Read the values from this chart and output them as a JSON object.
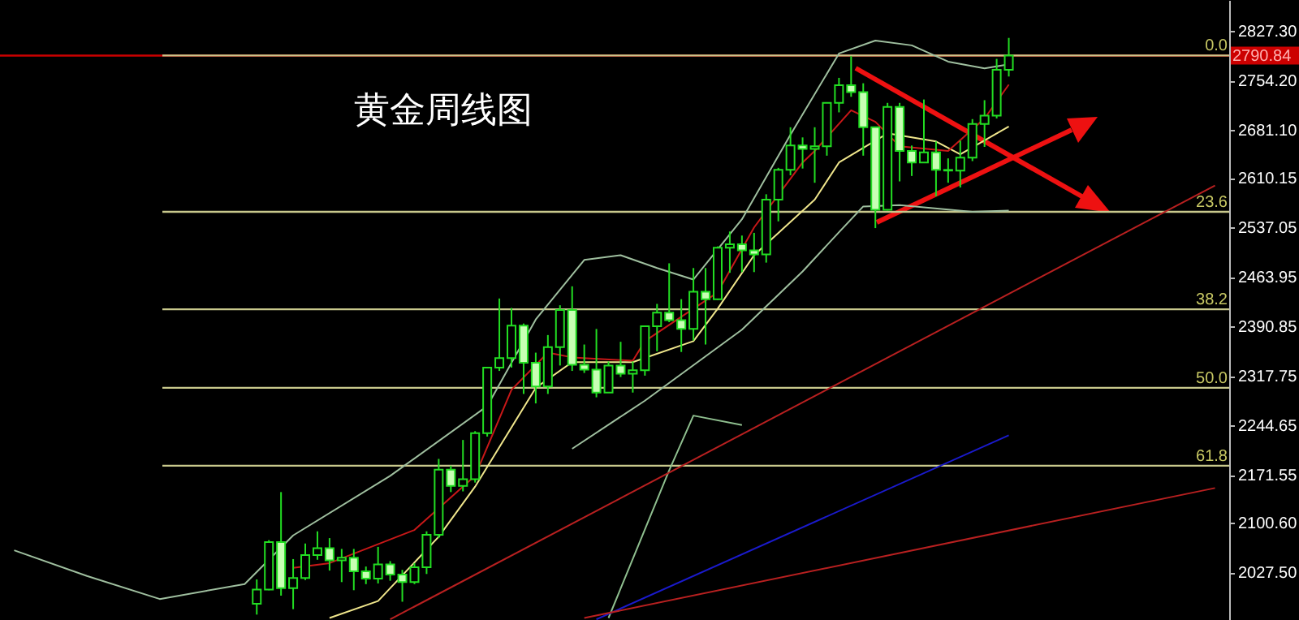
{
  "chart_data": {
    "type": "candlestick",
    "title": "黄金周线图",
    "tick_labels": "y",
    "categories": [
      null,
      null,
      null,
      null,
      null,
      null,
      null,
      null,
      null,
      null,
      null,
      null,
      null,
      null,
      null,
      null,
      null,
      null,
      null,
      null,
      null,
      null,
      null,
      null,
      null,
      null,
      null,
      null,
      null,
      null,
      null,
      null,
      null,
      null,
      null,
      null,
      null,
      null,
      null,
      null,
      null,
      null,
      null,
      null,
      null,
      null,
      null,
      null,
      null,
      null,
      null,
      null,
      null,
      null,
      null,
      null,
      null,
      null,
      null,
      null,
      null,
      null,
      null,
      null,
      null,
      null,
      null,
      null,
      null,
      null,
      null,
      null,
      null,
      null,
      null,
      null,
      null,
      null,
      null,
      null,
      null,
      null,
      null,
      null,
      null,
      null,
      null,
      null,
      null,
      null,
      null,
      null,
      null,
      null,
      null,
      null,
      null,
      null,
      null,
      null
    ],
    "ohlc": [
      null,
      null,
      null,
      null,
      null,
      null,
      null,
      null,
      null,
      null,
      null,
      null,
      null,
      null,
      null,
      null,
      null,
      null,
      null,
      null,
      [
        1981,
        2017,
        1965,
        2002
      ],
      [
        2002,
        2075,
        2001,
        2072
      ],
      [
        2072,
        2146,
        1993,
        2004
      ],
      [
        2004,
        2047,
        1973,
        2019
      ],
      [
        2019,
        2070,
        2016,
        2053
      ],
      [
        2053,
        2088,
        2046,
        2063
      ],
      [
        2063,
        2078,
        2030,
        2045
      ],
      [
        2045,
        2062,
        2013,
        2049
      ],
      [
        2049,
        2062,
        2001,
        2029
      ],
      [
        2029,
        2036,
        2010,
        2018
      ],
      [
        2018,
        2065,
        2011,
        2039
      ],
      [
        2039,
        2044,
        2015,
        2024
      ],
      [
        2024,
        2031,
        1984,
        2013
      ],
      [
        2013,
        2041,
        2010,
        2035
      ],
      [
        2035,
        2088,
        2025,
        2083
      ],
      [
        2083,
        2195,
        2078,
        2179
      ],
      [
        2179,
        2185,
        2146,
        2155
      ],
      [
        2155,
        2223,
        2147,
        2165
      ],
      [
        2165,
        2236,
        2160,
        2233
      ],
      [
        2233,
        2330,
        2228,
        2330
      ],
      [
        2330,
        2432,
        2325,
        2344
      ],
      [
        2344,
        2418,
        2330,
        2392
      ],
      [
        2392,
        2395,
        2291,
        2337
      ],
      [
        2337,
        2352,
        2277,
        2302
      ],
      [
        2302,
        2378,
        2291,
        2360
      ],
      [
        2360,
        2422,
        2333,
        2415
      ],
      [
        2415,
        2450,
        2325,
        2334
      ],
      [
        2334,
        2364,
        2322,
        2327
      ],
      [
        2327,
        2387,
        2286,
        2293
      ],
      [
        2293,
        2339,
        2293,
        2333
      ],
      [
        2333,
        2368,
        2316,
        2321
      ],
      [
        2321,
        2339,
        2293,
        2326
      ],
      [
        2326,
        2392,
        2318,
        2391
      ],
      [
        2391,
        2424,
        2354,
        2411
      ],
      [
        2411,
        2484,
        2397,
        2400
      ],
      [
        2400,
        2431,
        2353,
        2387
      ],
      [
        2387,
        2477,
        2370,
        2442
      ],
      [
        2442,
        2477,
        2364,
        2431
      ],
      [
        2431,
        2509,
        2430,
        2507
      ],
      [
        2507,
        2531,
        2470,
        2512
      ],
      [
        2512,
        2525,
        2471,
        2503
      ],
      [
        2503,
        2529,
        2471,
        2497
      ],
      [
        2497,
        2586,
        2485,
        2578
      ],
      [
        2578,
        2625,
        2546,
        2622
      ],
      [
        2622,
        2685,
        2614,
        2658
      ],
      [
        2658,
        2670,
        2624,
        2653
      ],
      [
        2653,
        2685,
        2603,
        2657
      ],
      [
        2657,
        2722,
        2643,
        2721
      ],
      [
        2721,
        2758,
        2707,
        2747
      ],
      [
        2747,
        2790,
        2730,
        2737
      ],
      [
        2737,
        2750,
        2643,
        2685
      ],
      [
        2685,
        2686,
        2536,
        2563
      ],
      [
        2563,
        2721,
        2562,
        2715
      ],
      [
        2715,
        2721,
        2605,
        2650
      ],
      [
        2650,
        2658,
        2613,
        2633
      ],
      [
        2633,
        2726,
        2632,
        2648
      ],
      [
        2648,
        2664,
        2583,
        2622
      ],
      [
        2622,
        2639,
        2603,
        2621
      ],
      [
        2621,
        2665,
        2596,
        2640
      ],
      [
        2640,
        2697,
        2635,
        2690
      ],
      [
        2690,
        2725,
        2656,
        2702
      ],
      [
        2702,
        2786,
        2698,
        2770
      ],
      [
        2770,
        2817,
        2760,
        2790.84
      ],
      null,
      null,
      null,
      null,
      null,
      null,
      null,
      null,
      null,
      null,
      null,
      null,
      null,
      null,
      null,
      null,
      null
    ],
    "ylim": [
      1957,
      2873
    ],
    "yticks": [
      {
        "value": 2027.5,
        "label": "2027.50"
      },
      {
        "value": 2100.6,
        "label": "2100.60"
      },
      {
        "value": 2171.55,
        "label": "2171.55"
      },
      {
        "value": 2244.65,
        "label": "2244.65"
      },
      {
        "value": 2317.75,
        "label": "2317.75"
      },
      {
        "value": 2390.85,
        "label": "2390.85"
      },
      {
        "value": 2463.95,
        "label": "2463.95"
      },
      {
        "value": 2537.05,
        "label": "2537.05"
      },
      {
        "value": 2610.15,
        "label": "2610.15"
      },
      {
        "value": 2681.1,
        "label": "2681.10"
      },
      {
        "value": 2754.2,
        "label": "2754.20"
      },
      {
        "value": 2827.3,
        "label": "2827.30"
      }
    ],
    "series": [
      {
        "type": "line",
        "color": "#9fbf9f",
        "values": [
          2060,
          null,
          null,
          null,
          null,
          null,
          2022,
          null,
          null,
          null,
          null,
          null,
          1988,
          null,
          null,
          null,
          null,
          null,
          null,
          2010,
          null,
          null,
          null,
          2082,
          null,
          null,
          null,
          null,
          null,
          null,
          null,
          2170,
          null,
          null,
          null,
          null,
          null,
          null,
          null,
          2273,
          null,
          null,
          null,
          2401,
          null,
          null,
          null,
          2489,
          null,
          null,
          2496,
          null,
          null,
          2477,
          null,
          null,
          2460,
          null,
          null,
          null,
          2549,
          null,
          null,
          null,
          2674,
          null,
          null,
          null,
          2794,
          null,
          null,
          2813,
          null,
          null,
          2806,
          null,
          null,
          2782,
          null,
          null,
          2772,
          null,
          2778,
          null,
          null,
          null,
          null,
          null,
          null,
          null,
          null,
          null,
          null,
          null,
          null,
          null,
          null,
          null,
          null,
          null
        ]
      },
      {
        "type": "line",
        "color": "#9fbf9f",
        "values": [
          null,
          null,
          null,
          null,
          null,
          null,
          null,
          null,
          null,
          null,
          null,
          null,
          null,
          null,
          null,
          null,
          null,
          null,
          null,
          null,
          null,
          null,
          null,
          null,
          null,
          null,
          null,
          null,
          null,
          null,
          null,
          null,
          null,
          null,
          null,
          null,
          null,
          null,
          null,
          null,
          null,
          null,
          null,
          null,
          null,
          null,
          2210,
          null,
          null,
          null,
          null,
          null,
          2281,
          null,
          null,
          null,
          null,
          null,
          null,
          null,
          2386,
          null,
          null,
          null,
          null,
          2472,
          null,
          null,
          2530,
          null,
          2568,
          null,
          null,
          2570,
          null,
          null,
          null,
          null,
          null,
          2560,
          null,
          null,
          2562,
          null,
          null,
          null,
          null,
          null,
          null,
          null,
          null,
          null,
          null,
          null,
          null,
          null,
          null,
          null,
          null,
          null
        ]
      },
      {
        "type": "line",
        "color": "#8fbf8f",
        "values": [
          null,
          null,
          null,
          null,
          null,
          null,
          null,
          null,
          null,
          null,
          null,
          null,
          null,
          null,
          null,
          null,
          null,
          null,
          null,
          null,
          null,
          null,
          null,
          null,
          null,
          null,
          null,
          null,
          null,
          null,
          null,
          null,
          null,
          null,
          null,
          null,
          null,
          null,
          null,
          null,
          null,
          null,
          null,
          null,
          null,
          null,
          null,
          null,
          null,
          1960,
          null,
          null,
          null,
          null,
          2178,
          null,
          2259,
          null,
          null,
          null,
          2245,
          null,
          null,
          null,
          null,
          null,
          null,
          null,
          null,
          null,
          null,
          null,
          null,
          null,
          null,
          null,
          null,
          null,
          null,
          null,
          null,
          null,
          null,
          null,
          null,
          null,
          null,
          null,
          null,
          null,
          null,
          null,
          null,
          null,
          null,
          null,
          null,
          null,
          null,
          null
        ]
      },
      {
        "type": "line",
        "color": "#f0e68c",
        "values": [
          null,
          null,
          null,
          null,
          null,
          null,
          null,
          null,
          null,
          null,
          null,
          null,
          null,
          null,
          null,
          null,
          null,
          null,
          null,
          null,
          null,
          null,
          null,
          null,
          null,
          null,
          1960,
          null,
          null,
          null,
          1985,
          null,
          null,
          null,
          null,
          2080,
          null,
          null,
          2154,
          null,
          null,
          null,
          null,
          2300,
          null,
          null,
          2338,
          null,
          null,
          null,
          null,
          2338,
          null,
          null,
          null,
          null,
          2369,
          null,
          2417,
          null,
          null,
          2496,
          null,
          null,
          null,
          null,
          2578,
          null,
          2633,
          null,
          null,
          null,
          2676,
          null,
          null,
          null,
          2664,
          null,
          2645,
          null,
          null,
          null,
          2686,
          null,
          null,
          null,
          null,
          null,
          null,
          null,
          null,
          null,
          null,
          null,
          null,
          null,
          null,
          null,
          null,
          null
        ]
      },
      {
        "type": "line",
        "color": "#c81818",
        "values": [
          null,
          null,
          null,
          null,
          null,
          null,
          null,
          null,
          null,
          null,
          null,
          null,
          null,
          null,
          null,
          null,
          null,
          null,
          null,
          null,
          null,
          null,
          null,
          2034,
          null,
          null,
          2041,
          null,
          null,
          null,
          null,
          null,
          null,
          2090,
          null,
          null,
          null,
          null,
          2170,
          null,
          null,
          2297,
          null,
          null,
          2352,
          null,
          2345,
          null,
          null,
          null,
          null,
          2340,
          2369,
          null,
          null,
          null,
          null,
          null,
          2441,
          null,
          null,
          2537,
          null,
          null,
          null,
          2633,
          2650,
          null,
          null,
          2710,
          null,
          2693,
          null,
          2657,
          null,
          null,
          null,
          2650,
          null,
          null,
          2698,
          null,
          2748,
          null,
          null,
          null,
          null,
          null,
          null,
          null,
          null,
          null,
          null,
          null,
          null,
          null,
          null,
          null,
          null,
          null
        ]
      },
      {
        "type": "line",
        "color": "#1a1acc",
        "values": [
          null,
          null,
          null,
          null,
          null,
          null,
          null,
          null,
          null,
          null,
          null,
          null,
          null,
          null,
          null,
          null,
          null,
          null,
          null,
          null,
          null,
          null,
          null,
          null,
          null,
          null,
          null,
          null,
          null,
          null,
          null,
          null,
          null,
          null,
          null,
          null,
          null,
          null,
          null,
          null,
          null,
          null,
          null,
          null,
          null,
          null,
          null,
          null,
          1958,
          null,
          null,
          null,
          null,
          null,
          null,
          null,
          null,
          null,
          null,
          null,
          null,
          null,
          null,
          null,
          null,
          null,
          null,
          null,
          null,
          null,
          null,
          null,
          null,
          null,
          null,
          null,
          null,
          null,
          null,
          null,
          null,
          null,
          2230,
          null,
          null,
          null,
          null,
          null,
          null,
          null,
          null,
          null,
          null,
          null,
          null,
          null,
          null,
          null,
          null,
          null
        ]
      },
      {
        "type": "line",
        "color": "#b82020",
        "values": [
          null,
          null,
          null,
          null,
          null,
          null,
          null,
          null,
          null,
          null,
          null,
          null,
          null,
          null,
          null,
          null,
          null,
          null,
          null,
          null,
          null,
          null,
          null,
          null,
          null,
          null,
          null,
          null,
          null,
          null,
          null,
          1958,
          null,
          null,
          null,
          null,
          null,
          null,
          null,
          null,
          null,
          null,
          null,
          null,
          null,
          null,
          null,
          null,
          null,
          null,
          null,
          null,
          null,
          null,
          null,
          null,
          null,
          null,
          null,
          null,
          null,
          null,
          null,
          null,
          null,
          null,
          null,
          null,
          null,
          null,
          null,
          null,
          null,
          null,
          null,
          null,
          null,
          null,
          null,
          null,
          null,
          null,
          null,
          null,
          null,
          null,
          null,
          null,
          null,
          null,
          null,
          null,
          null,
          null,
          null,
          null,
          null,
          null,
          null,
          2599
        ]
      },
      {
        "type": "line",
        "color": "#b82020",
        "values": [
          null,
          null,
          null,
          null,
          null,
          null,
          null,
          null,
          null,
          null,
          null,
          null,
          null,
          null,
          null,
          null,
          null,
          null,
          null,
          null,
          null,
          null,
          null,
          null,
          null,
          null,
          null,
          null,
          null,
          null,
          null,
          null,
          null,
          null,
          null,
          null,
          null,
          null,
          null,
          null,
          null,
          null,
          null,
          null,
          null,
          null,
          null,
          1960,
          null,
          null,
          null,
          null,
          null,
          null,
          null,
          null,
          null,
          null,
          null,
          null,
          null,
          null,
          null,
          null,
          null,
          null,
          null,
          null,
          null,
          null,
          null,
          null,
          null,
          null,
          null,
          null,
          null,
          null,
          null,
          null,
          null,
          null,
          null,
          null,
          null,
          null,
          null,
          null,
          null,
          null,
          null,
          null,
          null,
          null,
          null,
          null,
          null,
          null,
          null,
          2152
        ]
      }
    ],
    "ref_lines": [
      {
        "axis": "y",
        "value": 2790.84,
        "label": "2790.84",
        "color": "#cc0000"
      },
      {
        "axis": "y",
        "value": 2791,
        "color": "#c8c88c"
      },
      {
        "axis": "y",
        "value": 2560,
        "color": "#c8c88c"
      },
      {
        "axis": "y",
        "value": 2416,
        "color": "#c8c88c"
      },
      {
        "axis": "y",
        "value": 2300,
        "color": "#c8c88c"
      },
      {
        "axis": "y",
        "value": 2185,
        "color": "#c8c88c"
      }
    ],
    "annotations": [
      {
        "text": "0.0",
        "y": 2791
      },
      {
        "text": "23.6",
        "y": 2560
      },
      {
        "text": "38.2",
        "y": 2416
      },
      {
        "text": "50.0",
        "y": 2300
      },
      {
        "text": "61.8",
        "y": 2185
      }
    ]
  }
}
